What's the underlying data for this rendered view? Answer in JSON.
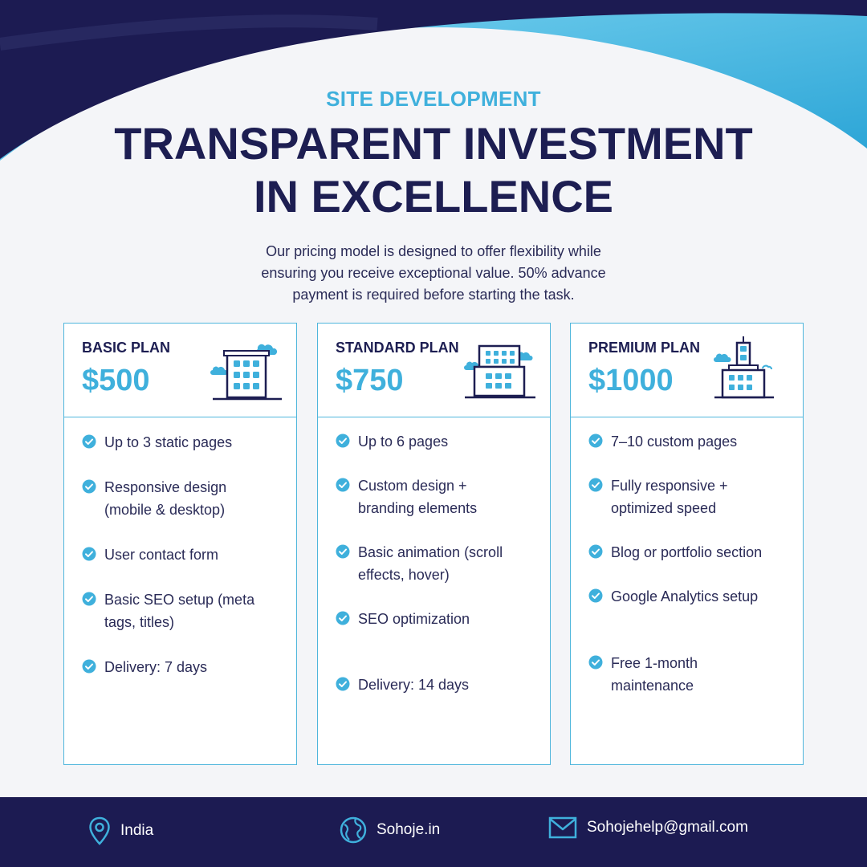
{
  "header": {
    "kicker": "SITE DEVELOPMENT",
    "title_line1": "TRANSPARENT INVESTMENT",
    "title_line2": "IN EXCELLENCE",
    "intro_line1": "Our pricing model is designed to offer flexibility while",
    "intro_line2": "ensuring you receive exceptional value. 50% advance",
    "intro_line3": "payment is required before starting the task."
  },
  "plans": [
    {
      "name": "BASIC PLAN",
      "price": "$500",
      "features": [
        {
          "line1": "Up to 3 static pages",
          "line2": ""
        },
        {
          "line1": "Responsive design",
          "line2": "(mobile & desktop)"
        },
        {
          "line1": "User contact form",
          "line2": ""
        },
        {
          "line1": "Basic SEO setup (meta",
          "line2": "tags, titles)"
        },
        {
          "line1": "Delivery: 7 days",
          "line2": ""
        }
      ]
    },
    {
      "name": "STANDARD PLAN",
      "price": "$750",
      "features": [
        {
          "line1": "Up to 6 pages",
          "line2": ""
        },
        {
          "line1": "Custom design +",
          "line2": "branding elements"
        },
        {
          "line1": "Basic animation (scroll",
          "line2": "effects, hover)"
        },
        {
          "line1": "SEO optimization",
          "line2": ""
        },
        {
          "line1": "Delivery: 14 days",
          "line2": ""
        }
      ]
    },
    {
      "name": "PREMIUM PLAN",
      "price": "$1000",
      "features": [
        {
          "line1": "7–10 custom pages",
          "line2": ""
        },
        {
          "line1": "Fully responsive +",
          "line2": "optimized speed"
        },
        {
          "line1": "Blog or portfolio section",
          "line2": ""
        },
        {
          "line1": "Google Analytics setup",
          "line2": ""
        },
        {
          "line1": "Free 1-month",
          "line2": "maintenance"
        }
      ]
    }
  ],
  "footer": {
    "location": "India",
    "website": "Sohoje.in",
    "email": "Sohojehelp@gmail.com"
  },
  "colors": {
    "navy": "#1d1e52",
    "accent": "#3fb0dc",
    "background": "#f4f5f8"
  },
  "icons": [
    "location-pin-icon",
    "globe-icon",
    "mail-icon",
    "check-circle-icon",
    "building-icon",
    "cloud-icon"
  ]
}
